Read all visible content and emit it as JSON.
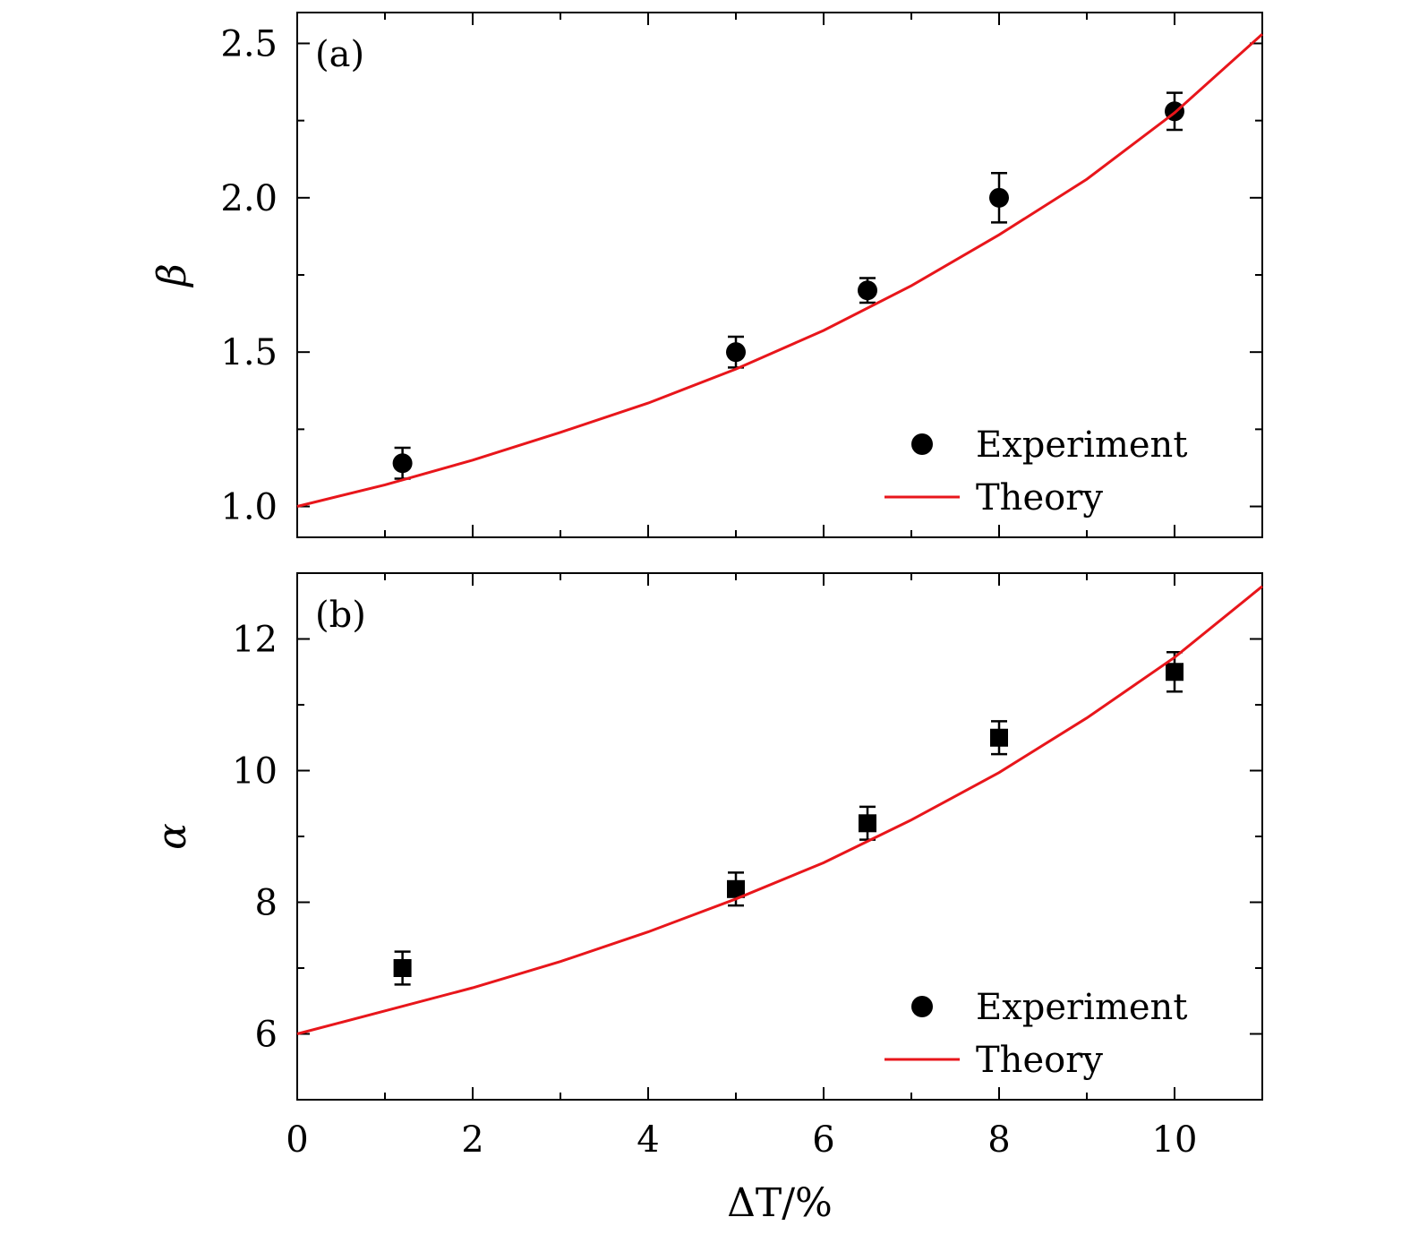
{
  "chart_data": [
    {
      "type": "scatter",
      "panel_label": "(a)",
      "ylabel": "β",
      "xlim": [
        0,
        11
      ],
      "ylim": [
        0.9,
        2.6
      ],
      "xticks": [
        0,
        2,
        4,
        6,
        8,
        10
      ],
      "yticks": [
        1.0,
        1.5,
        2.0,
        2.5
      ],
      "ytick_labels": [
        "1.0",
        "1.5",
        "2.0",
        "2.5"
      ],
      "legend_position": "bottom-right",
      "series": [
        {
          "name": "Experiment",
          "kind": "scatter",
          "marker": "circle",
          "color": "#000000",
          "x": [
            1.2,
            5,
            6.5,
            8,
            10
          ],
          "y": [
            1.14,
            1.5,
            1.7,
            2.0,
            2.28
          ],
          "error": [
            0.05,
            0.05,
            0.04,
            0.08,
            0.06
          ]
        },
        {
          "name": "Theory",
          "kind": "line",
          "color": "#e8161b",
          "x": [
            0,
            1,
            2,
            3,
            4,
            5,
            6,
            7,
            8,
            9,
            10,
            11
          ],
          "y": [
            1.0,
            1.07,
            1.15,
            1.24,
            1.335,
            1.445,
            1.57,
            1.715,
            1.88,
            2.06,
            2.275,
            2.53
          ]
        }
      ]
    },
    {
      "type": "scatter",
      "panel_label": "(b)",
      "ylabel": "α",
      "xlabel": "ΔT/%",
      "xlim": [
        0,
        11
      ],
      "ylim": [
        5,
        13
      ],
      "xticks": [
        0,
        2,
        4,
        6,
        8,
        10
      ],
      "xtick_labels": [
        "0",
        "2",
        "4",
        "6",
        "8",
        "10"
      ],
      "yticks": [
        6,
        8,
        10,
        12
      ],
      "ytick_labels": [
        "6",
        "8",
        "10",
        "12"
      ],
      "legend_position": "bottom-right",
      "series": [
        {
          "name": "Experiment",
          "kind": "scatter",
          "marker": "square",
          "legend_marker": "circle",
          "color": "#000000",
          "x": [
            1.2,
            5,
            6.5,
            8,
            10
          ],
          "y": [
            7.0,
            8.2,
            9.2,
            10.5,
            11.5
          ],
          "error": [
            0.25,
            0.25,
            0.25,
            0.25,
            0.3
          ]
        },
        {
          "name": "Theory",
          "kind": "line",
          "color": "#e8161b",
          "x": [
            0,
            1,
            2,
            3,
            4,
            5,
            6,
            7,
            8,
            9,
            10,
            11
          ],
          "y": [
            6.0,
            6.35,
            6.7,
            7.1,
            7.55,
            8.05,
            8.6,
            9.25,
            9.97,
            10.8,
            11.72,
            12.8
          ]
        }
      ]
    }
  ]
}
